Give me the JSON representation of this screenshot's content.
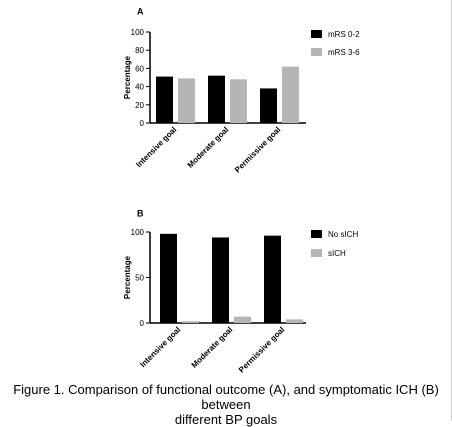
{
  "figure": {
    "caption_line1": "Figure 1. Comparison of functional outcome (A), and symptomatic ICH (B) between",
    "caption_line2": "different BP goals"
  },
  "colors": {
    "dark": "#000000",
    "light": "#b5b5b5"
  },
  "chart_data": [
    {
      "panel": "A",
      "type": "bar",
      "categories": [
        "Intensive goal",
        "Moderate goal",
        "Permissive goal"
      ],
      "series": [
        {
          "name": "mRS 0-2",
          "color": "#000000",
          "values": [
            51,
            52,
            38
          ]
        },
        {
          "name": "mRS 3-6",
          "color": "#b5b5b5",
          "values": [
            49,
            48,
            62
          ]
        }
      ],
      "ylabel": "Percentage",
      "ylim": [
        0,
        100
      ],
      "yticks": [
        0,
        20,
        40,
        60,
        80,
        100
      ],
      "grid": false,
      "legend": "right"
    },
    {
      "panel": "B",
      "type": "bar",
      "categories": [
        "Intensive goal",
        "Moderate goal",
        "Permissive goal"
      ],
      "series": [
        {
          "name": "No sICH",
          "color": "#000000",
          "values": [
            98,
            94,
            96
          ]
        },
        {
          "name": "sICH",
          "color": "#b5b5b5",
          "values": [
            2,
            7,
            4
          ]
        }
      ],
      "ylabel": "Percentage",
      "ylim": [
        0,
        100
      ],
      "yticks": [
        0,
        50,
        100
      ],
      "grid": false,
      "legend": "right"
    }
  ]
}
